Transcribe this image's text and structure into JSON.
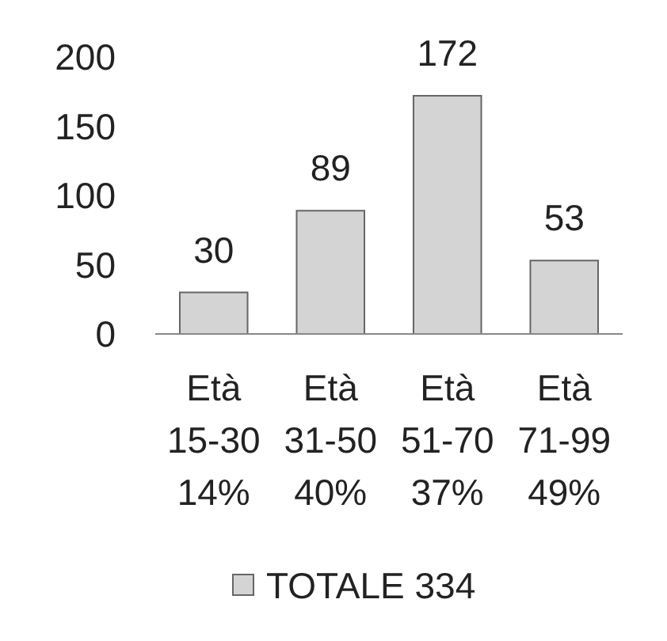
{
  "chart_data": {
    "type": "bar",
    "categories": [
      "Età 15-30 14%",
      "Età 31-50 40%",
      "Età 51-70 37%",
      "Età 71-99 49%"
    ],
    "series": [
      {
        "name": "TOTALE 334",
        "color": "#d4d4d4",
        "values": [
          30,
          89,
          172,
          53
        ]
      }
    ],
    "ylim": [
      0,
      200
    ],
    "yticks": [
      0,
      50,
      100,
      150,
      200
    ],
    "data_labels": true,
    "legend": "bottom"
  }
}
